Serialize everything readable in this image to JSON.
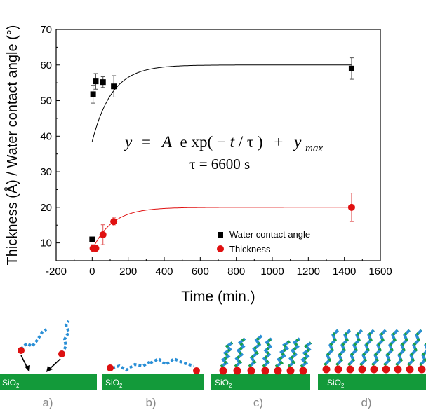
{
  "chart_data": {
    "type": "scatter",
    "xlabel": "Time (min.)",
    "ylabel": "Thickness (Å) / Water contact angle (°)",
    "xlim": [
      -200,
      1600
    ],
    "ylim": [
      5,
      70
    ],
    "x_ticks": [
      "-200",
      "0",
      "200",
      "400",
      "600",
      "800",
      "1000",
      "1200",
      "1400",
      "1600"
    ],
    "y_ticks": [
      "10",
      "20",
      "30",
      "40",
      "50",
      "60",
      "70"
    ],
    "grid": false,
    "legend_position": "bottom-right",
    "series": [
      {
        "name": "Water contact angle",
        "marker": "square",
        "color": "#000000",
        "x": [
          5,
          20,
          60,
          120,
          1440
        ],
        "y": [
          51.8,
          55.4,
          55.2,
          54.0,
          59.0
        ],
        "err": [
          2.5,
          2.2,
          1.5,
          3.0,
          3.0
        ]
      },
      {
        "name": "Thickness",
        "marker": "circle",
        "color": "#e01010",
        "x": [
          5,
          20,
          60,
          120,
          1440
        ],
        "y": [
          8.5,
          8.5,
          12.3,
          16.0,
          20.0
        ],
        "err": [
          1.0,
          0.8,
          2.8,
          1.2,
          4.0
        ]
      }
    ],
    "extra_points": [
      {
        "series": "Water contact angle",
        "x": 0,
        "y": 11.0
      }
    ],
    "fit_curves": [
      {
        "color": "#000000",
        "x0": 0,
        "y0": 38.5,
        "ymax": 60.0,
        "tau_min": 110
      },
      {
        "color": "#e01010",
        "x0": 0,
        "y0": 8.0,
        "ymax": 20.0,
        "tau_min": 110
      }
    ],
    "annotation": {
      "equation_parts": [
        "y",
        "=",
        "A",
        "e",
        "xp(",
        "−",
        "t",
        "/",
        "τ",
        ")",
        "+",
        "y",
        "max"
      ],
      "tau_text": "τ = 6600 s"
    }
  },
  "schematic": {
    "substrate_label_main": "SiO",
    "substrate_label_sub": "2",
    "substrate_color": "#139a3a",
    "head_color": "#dd1111",
    "chain_color_a": "#2a8fd6",
    "chain_color_b": "#1aa043",
    "panels": [
      {
        "label": "a)"
      },
      {
        "label": "b)"
      },
      {
        "label": "c)"
      },
      {
        "label": "d)"
      }
    ]
  }
}
